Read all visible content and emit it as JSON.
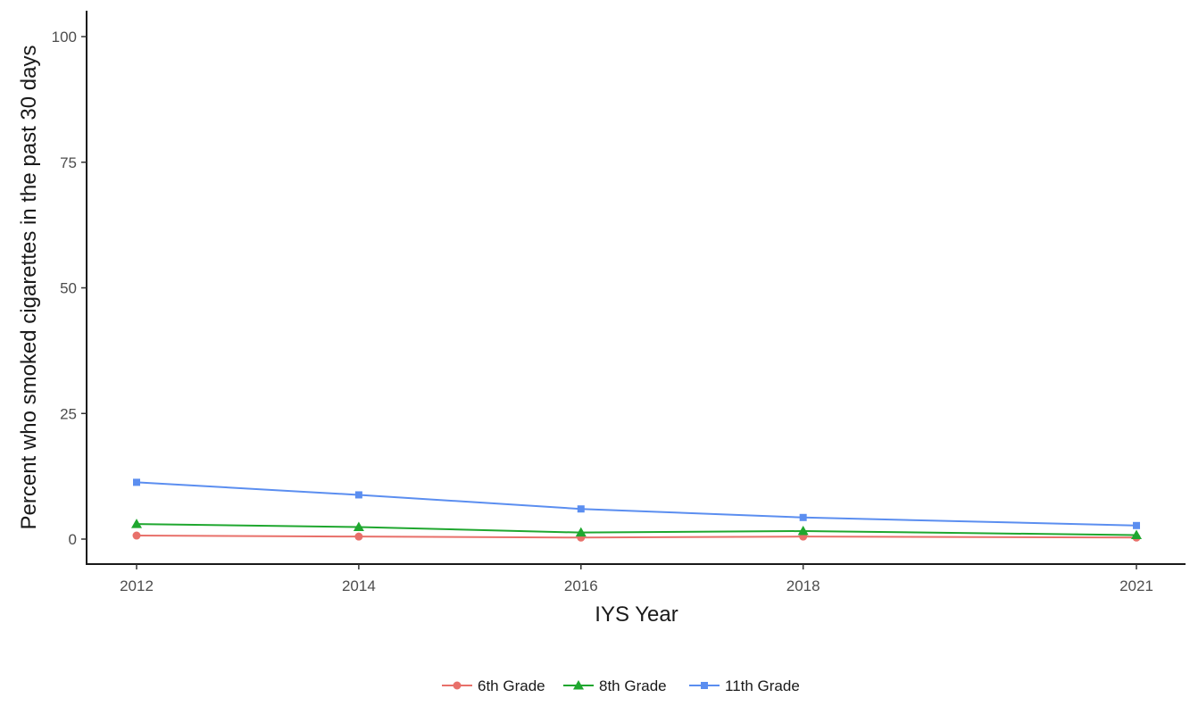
{
  "chart_data": {
    "type": "line",
    "xlabel": "IYS Year",
    "ylabel": "Percent who smoked cigarettes in the past 30 days",
    "x": [
      "2012",
      "2014",
      "2016",
      "2018",
      "2021"
    ],
    "ylim": [
      0,
      100
    ],
    "yticks": [
      "0",
      "25",
      "50",
      "75",
      "100"
    ],
    "grid": false,
    "legend_position": "bottom",
    "series": [
      {
        "name": "6th Grade",
        "color": "#e8706a",
        "marker": "circle",
        "values": [
          0.7,
          0.5,
          0.3,
          0.5,
          0.3
        ]
      },
      {
        "name": "8th Grade",
        "color": "#1fa72f",
        "marker": "triangle",
        "values": [
          3.0,
          2.4,
          1.3,
          1.6,
          0.8
        ]
      },
      {
        "name": "11th Grade",
        "color": "#5b8ef0",
        "marker": "square",
        "values": [
          11.3,
          8.8,
          6.0,
          4.3,
          2.7
        ]
      }
    ]
  }
}
